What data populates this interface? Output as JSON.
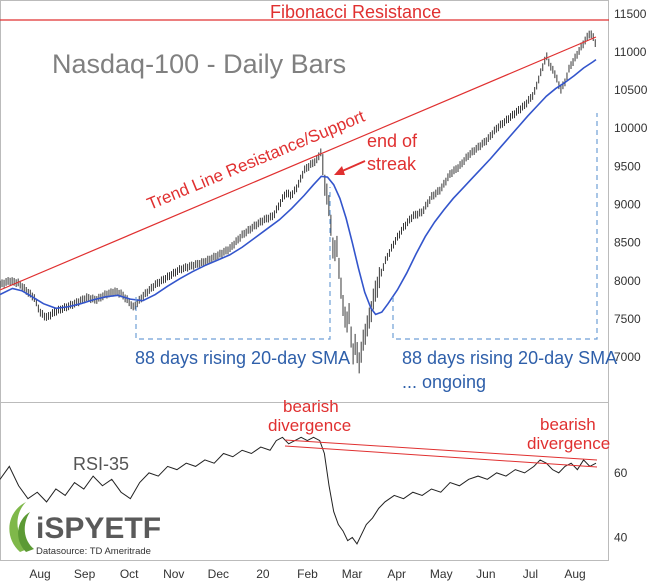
{
  "chart_data": [
    {
      "type": "line",
      "title": "Nasdaq-100 - Daily Bars",
      "ylim": [
        6700,
        11550
      ],
      "y_ticks": [
        7000,
        7500,
        8000,
        8500,
        9000,
        9500,
        10000,
        10500,
        11000,
        11500
      ],
      "x_ticks": [
        "Aug",
        "Sep",
        "Oct",
        "Nov",
        "Dec",
        "20",
        "Feb",
        "Mar",
        "Apr",
        "May",
        "Jun",
        "Jul",
        "Aug"
      ],
      "series": [
        {
          "name": "",
          "kind": "price",
          "color": "#222222",
          "values": [
            [
              0,
              7950
            ],
            [
              6,
              8000
            ],
            [
              12,
              7970
            ],
            [
              18,
              7850
            ],
            [
              22,
              7780
            ],
            [
              26,
              7580
            ],
            [
              30,
              7520
            ],
            [
              36,
              7600
            ],
            [
              42,
              7650
            ],
            [
              48,
              7700
            ],
            [
              56,
              7780
            ],
            [
              62,
              7750
            ],
            [
              68,
              7820
            ],
            [
              74,
              7860
            ],
            [
              78,
              7830
            ],
            [
              82,
              7750
            ],
            [
              86,
              7650
            ],
            [
              92,
              7800
            ],
            [
              100,
              7950
            ],
            [
              108,
              8050
            ],
            [
              116,
              8150
            ],
            [
              124,
              8200
            ],
            [
              132,
              8250
            ],
            [
              140,
              8330
            ],
            [
              148,
              8420
            ],
            [
              156,
              8600
            ],
            [
              164,
              8720
            ],
            [
              170,
              8800
            ],
            [
              176,
              8850
            ],
            [
              180,
              9000
            ],
            [
              184,
              9150
            ],
            [
              188,
              9120
            ],
            [
              192,
              9250
            ],
            [
              196,
              9450
            ],
            [
              200,
              9520
            ],
            [
              204,
              9580
            ],
            [
              207,
              9700
            ],
            [
              209,
              9300
            ],
            [
              211,
              9100
            ],
            [
              213,
              8800
            ],
            [
              215,
              8300
            ],
            [
              217,
              8500
            ],
            [
              219,
              8000
            ],
            [
              221,
              7700
            ],
            [
              223,
              7400
            ],
            [
              225,
              7600
            ],
            [
              227,
              7000
            ],
            [
              229,
              7200
            ],
            [
              231,
              6900
            ],
            [
              233,
              7100
            ],
            [
              235,
              7300
            ],
            [
              238,
              7500
            ],
            [
              241,
              7800
            ],
            [
              244,
              8000
            ],
            [
              248,
              8250
            ],
            [
              254,
              8500
            ],
            [
              260,
              8700
            ],
            [
              266,
              8850
            ],
            [
              272,
              8900
            ],
            [
              278,
              9100
            ],
            [
              284,
              9200
            ],
            [
              290,
              9400
            ],
            [
              296,
              9500
            ],
            [
              302,
              9650
            ],
            [
              308,
              9750
            ],
            [
              314,
              9850
            ],
            [
              320,
              10000
            ],
            [
              326,
              10100
            ],
            [
              332,
              10200
            ],
            [
              338,
              10300
            ],
            [
              344,
              10450
            ],
            [
              348,
              10700
            ],
            [
              352,
              10950
            ],
            [
              355,
              10800
            ],
            [
              358,
              10700
            ],
            [
              361,
              10500
            ],
            [
              364,
              10600
            ],
            [
              367,
              10800
            ],
            [
              370,
              10900
            ],
            [
              374,
              11050
            ],
            [
              377,
              11150
            ],
            [
              380,
              11250
            ],
            [
              382,
              11200
            ],
            [
              384,
              11100
            ]
          ]
        },
        {
          "name": "",
          "kind": "sma20",
          "color": "#3355cc",
          "values": [
            [
              0,
              7820
            ],
            [
              8,
              7900
            ],
            [
              14,
              7870
            ],
            [
              20,
              7800
            ],
            [
              28,
              7700
            ],
            [
              36,
              7640
            ],
            [
              44,
              7660
            ],
            [
              52,
              7700
            ],
            [
              60,
              7750
            ],
            [
              68,
              7790
            ],
            [
              76,
              7810
            ],
            [
              84,
              7760
            ],
            [
              92,
              7740
            ],
            [
              100,
              7820
            ],
            [
              108,
              7930
            ],
            [
              116,
              8030
            ],
            [
              124,
              8120
            ],
            [
              132,
              8200
            ],
            [
              140,
              8270
            ],
            [
              148,
              8340
            ],
            [
              156,
              8440
            ],
            [
              164,
              8560
            ],
            [
              172,
              8680
            ],
            [
              180,
              8800
            ],
            [
              188,
              8950
            ],
            [
              196,
              9120
            ],
            [
              202,
              9260
            ],
            [
              207,
              9370
            ],
            [
              211,
              9360
            ],
            [
              215,
              9260
            ],
            [
              219,
              9080
            ],
            [
              223,
              8820
            ],
            [
              227,
              8500
            ],
            [
              231,
              8160
            ],
            [
              235,
              7850
            ],
            [
              239,
              7640
            ],
            [
              242,
              7560
            ],
            [
              246,
              7590
            ],
            [
              250,
              7700
            ],
            [
              256,
              7880
            ],
            [
              262,
              8100
            ],
            [
              268,
              8350
            ],
            [
              274,
              8580
            ],
            [
              280,
              8770
            ],
            [
              286,
              8930
            ],
            [
              292,
              9080
            ],
            [
              298,
              9210
            ],
            [
              304,
              9340
            ],
            [
              310,
              9470
            ],
            [
              316,
              9600
            ],
            [
              322,
              9740
            ],
            [
              328,
              9880
            ],
            [
              334,
              10020
            ],
            [
              340,
              10160
            ],
            [
              346,
              10290
            ],
            [
              352,
              10420
            ],
            [
              358,
              10520
            ],
            [
              364,
              10600
            ],
            [
              370,
              10690
            ],
            [
              376,
              10790
            ],
            [
              382,
              10870
            ],
            [
              384,
              10900
            ]
          ]
        }
      ]
    },
    {
      "type": "line",
      "title": "RSI-35",
      "ylim": [
        33,
        77
      ],
      "y_ticks": [
        40,
        60
      ],
      "series": [
        {
          "name": "",
          "color": "#222222",
          "values": [
            [
              0,
              58
            ],
            [
              6,
              62
            ],
            [
              12,
              56
            ],
            [
              18,
              52
            ],
            [
              24,
              54
            ],
            [
              30,
              51
            ],
            [
              36,
              55
            ],
            [
              42,
              53
            ],
            [
              48,
              57
            ],
            [
              54,
              55
            ],
            [
              60,
              59
            ],
            [
              66,
              56
            ],
            [
              72,
              58
            ],
            [
              78,
              54
            ],
            [
              84,
              52
            ],
            [
              90,
              57
            ],
            [
              96,
              60
            ],
            [
              102,
              59
            ],
            [
              108,
              62
            ],
            [
              114,
              61
            ],
            [
              120,
              63
            ],
            [
              126,
              62
            ],
            [
              132,
              64
            ],
            [
              138,
              63
            ],
            [
              144,
              66
            ],
            [
              150,
              65
            ],
            [
              156,
              67
            ],
            [
              162,
              66
            ],
            [
              168,
              68
            ],
            [
              174,
              67
            ],
            [
              178,
              70
            ],
            [
              182,
              71
            ],
            [
              186,
              69
            ],
            [
              190,
              70
            ],
            [
              194,
              71
            ],
            [
              198,
              70
            ],
            [
              202,
              71
            ],
            [
              206,
              70
            ],
            [
              209,
              66
            ],
            [
              212,
              56
            ],
            [
              215,
              48
            ],
            [
              218,
              44
            ],
            [
              221,
              42
            ],
            [
              224,
              39
            ],
            [
              227,
              40
            ],
            [
              230,
              38
            ],
            [
              233,
              41
            ],
            [
              236,
              44
            ],
            [
              240,
              46
            ],
            [
              244,
              49
            ],
            [
              248,
              51
            ],
            [
              254,
              53
            ],
            [
              260,
              52
            ],
            [
              266,
              54
            ],
            [
              272,
              53
            ],
            [
              278,
              55
            ],
            [
              284,
              54
            ],
            [
              290,
              57
            ],
            [
              296,
              56
            ],
            [
              302,
              58
            ],
            [
              308,
              59
            ],
            [
              314,
              58
            ],
            [
              320,
              60
            ],
            [
              326,
              59
            ],
            [
              332,
              61
            ],
            [
              338,
              60
            ],
            [
              344,
              62
            ],
            [
              348,
              64
            ],
            [
              352,
              63
            ],
            [
              356,
              61
            ],
            [
              360,
              60
            ],
            [
              364,
              62
            ],
            [
              368,
              63
            ],
            [
              372,
              61
            ],
            [
              376,
              64
            ],
            [
              380,
              62
            ],
            [
              384,
              63
            ]
          ]
        }
      ]
    }
  ],
  "annotations": {
    "fib": "Fibonacci Resistance",
    "trendline": "Trend Line Resistance/Support",
    "end1": "end of",
    "end2": "streak",
    "streak1": "88 days rising 20-day SMA",
    "streak2a": "88 days rising 20-day SMA",
    "streak2b": "... ongoing",
    "bear1a": "bearish",
    "bear1b": "divergence",
    "bear2a": "bearish",
    "bear2b": "divergence"
  },
  "logo": {
    "name": "iSPYETF",
    "source": "Datasource: TD Ameritrade"
  },
  "colors": {
    "red": "#e03030",
    "blue": "#2e5faa",
    "sma": "#3355cc",
    "price": "#222222",
    "dash": "#6f9fd6",
    "logo_green": "#7fb84a"
  }
}
